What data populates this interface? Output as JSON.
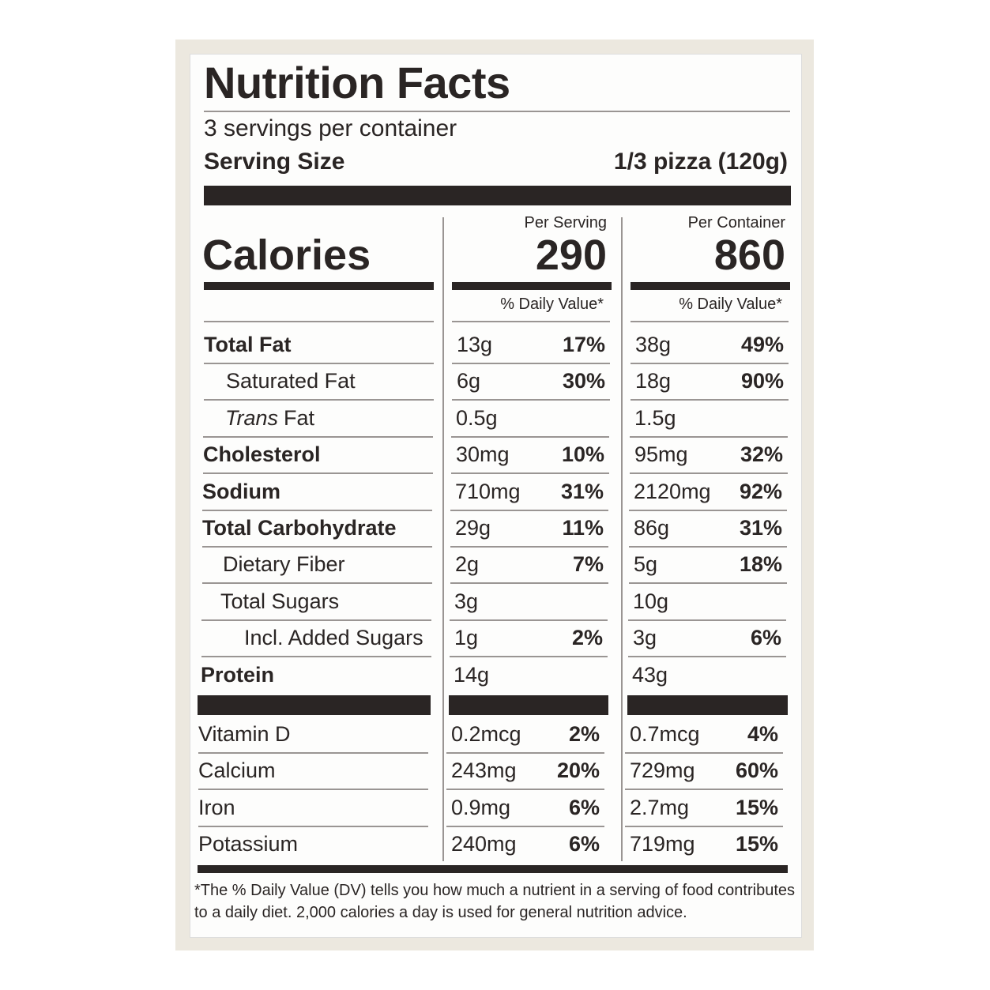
{
  "title": "Nutrition Facts",
  "servings": "3 servings per container",
  "serving_size": {
    "label": "Serving Size",
    "value": "1/3 pizza (120g)"
  },
  "calories": {
    "label": "Calories",
    "columns": [
      {
        "header": "Per Serving",
        "value": "290",
        "dv_header": "% Daily Value*"
      },
      {
        "header": "Per Container",
        "value": "860",
        "dv_header": "% Daily Value*"
      }
    ]
  },
  "rows": [
    {
      "name": "Total Fat",
      "serving": [
        "13g",
        "17%"
      ],
      "container": [
        "38g",
        "49%"
      ]
    },
    {
      "name": "Saturated Fat",
      "serving": [
        "6g",
        "30%"
      ],
      "container": [
        "18g",
        "90%"
      ]
    },
    {
      "name": [
        "Trans",
        "Fat"
      ],
      "serving": [
        "0.5g"
      ],
      "container": [
        "1.5g"
      ]
    },
    {
      "name": "Cholesterol",
      "serving": [
        "30mg",
        "10%"
      ],
      "container": [
        "95mg",
        "32%"
      ]
    },
    {
      "name": "Sodium",
      "serving": [
        "710mg",
        "31%"
      ],
      "container": [
        "2120mg",
        "92%"
      ]
    },
    {
      "name": "Total Carbohydrate",
      "serving": [
        "29g",
        "11%"
      ],
      "container": [
        "86g",
        "31%"
      ]
    },
    {
      "name": "Dietary Fiber",
      "serving": [
        "2g",
        "7%"
      ],
      "container": [
        "5g",
        "18%"
      ]
    },
    {
      "name": "Total Sugars",
      "serving": [
        "3g"
      ],
      "container": [
        "10g"
      ]
    },
    {
      "name": "Incl. Added Sugars",
      "serving": [
        "1g",
        "2%"
      ],
      "container": [
        "3g",
        "6%"
      ]
    },
    {
      "name": "Protein",
      "serving": [
        "14g"
      ],
      "container": [
        "43g"
      ]
    }
  ],
  "vitamins": [
    {
      "name": "Vitamin D",
      "serving": [
        "0.2mcg",
        "2%"
      ],
      "container": [
        "0.7mcg",
        "4%"
      ]
    },
    {
      "name": "Calcium",
      "serving": [
        "243mg",
        "20%"
      ],
      "container": [
        "729mg",
        "60%"
      ]
    },
    {
      "name": "Iron",
      "serving": [
        "0.9mg",
        "6%"
      ],
      "container": [
        "2.7mg",
        "15%"
      ]
    },
    {
      "name": "Potassium",
      "serving": [
        "240mg",
        "6%"
      ],
      "container": [
        "719mg",
        "15%"
      ]
    }
  ],
  "footnote": [
    "*The % Daily Value (DV) tells you how much a nutrient in a serving of food contributes",
    "to a daily diet. 2,000 calories a day is used for general nutrition advice."
  ]
}
